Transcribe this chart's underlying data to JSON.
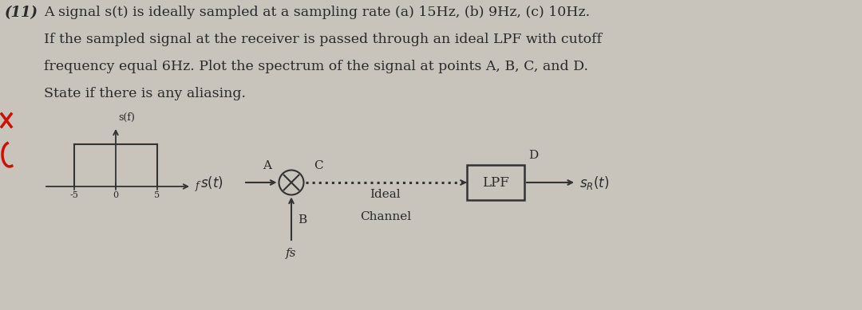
{
  "background_color": "#c8c3bb",
  "text_color": "#2a2a2a",
  "title_line1": "A signal s(t) is ideally sampled at a sampling rate (a) 15Hz, (b) 9Hz, (c) 10Hz.",
  "title_line2": "If the sampled signal at the receiver is passed through an ideal LPF with cutoff",
  "title_line3": "frequency equal 6Hz. Plot the spectrum of the signal at points A, B, C, and D.",
  "title_line4": "State if there is any aliasing.",
  "problem_number": "(11)",
  "fig_width": 10.8,
  "fig_height": 3.89,
  "point_A": "A",
  "point_B": "B",
  "point_C": "C",
  "point_D": "D",
  "lpf_label": "LPF",
  "channel_label1": "Ideal",
  "channel_label2": "Channel",
  "fs_label": "fs",
  "red_mark_color": "#cc1100",
  "spectrum_ylabel": "s(f)",
  "spectrum_xlabel": "f",
  "spectrum_ticks": [
    "-5",
    "0",
    "5"
  ],
  "dark_gray": "#333333"
}
